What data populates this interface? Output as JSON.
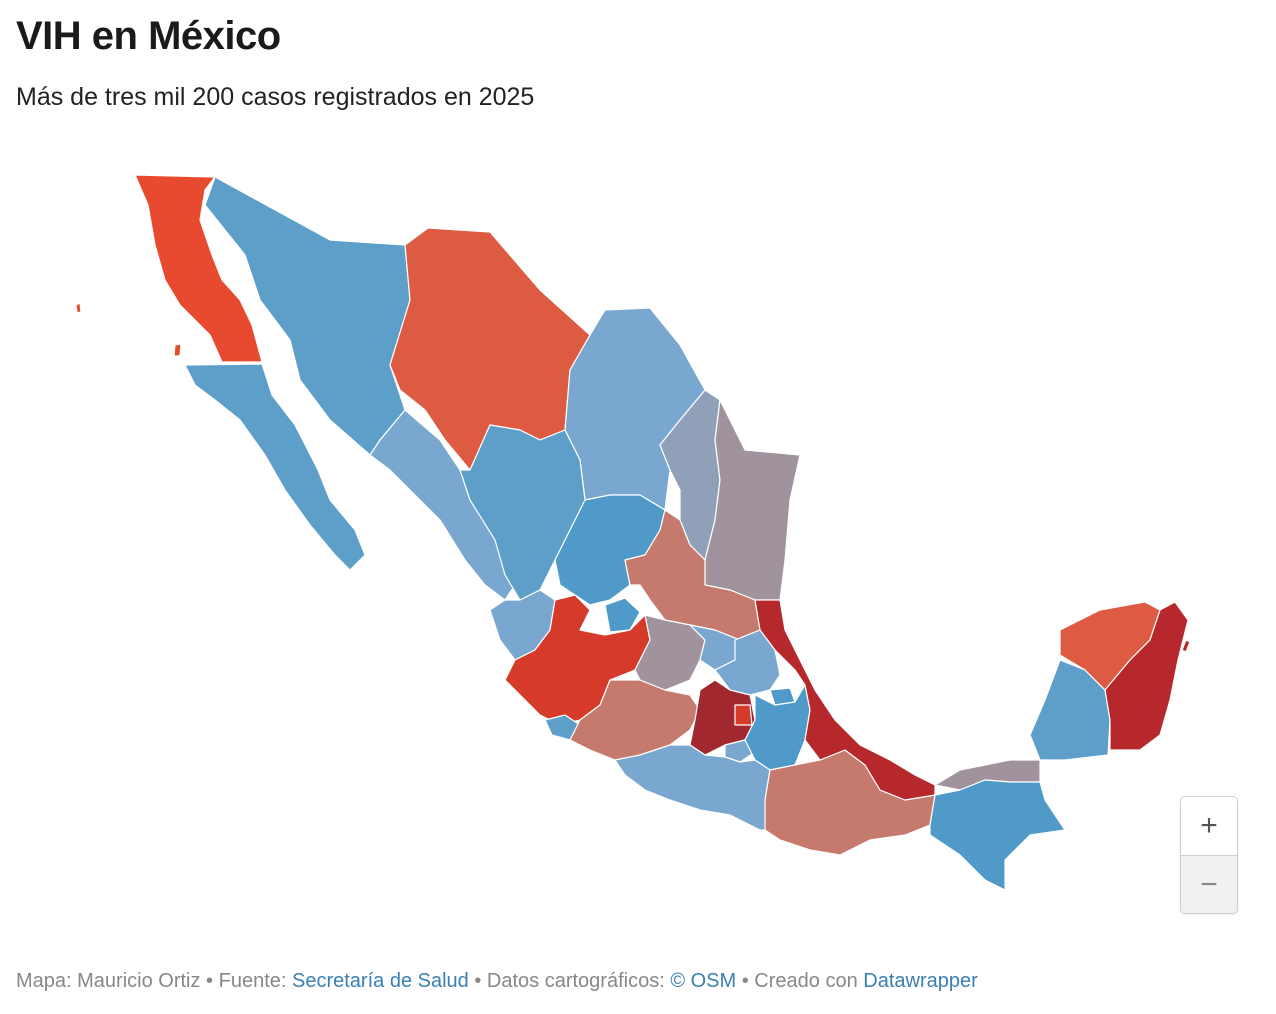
{
  "header": {
    "title": "VIH en México",
    "subtitle": "Más de tres mil 200 casos registrados en 2025"
  },
  "colors": {
    "blue": "#5e9fc9",
    "blue_light": "#7aa7cf",
    "blue_dark": "#4f9ac8",
    "grey_mauve": "#a0939e",
    "grey_blue": "#8fa0b8",
    "salmon": "#c67a6d",
    "orange_red": "#dc5b42",
    "red": "#d53a2b",
    "dark_red": "#b7282c",
    "maroon": "#a1282f",
    "bright_red": "#e84a2f"
  },
  "zoom": {
    "in_label": "+",
    "out_label": "−"
  },
  "footer": {
    "author_prefix": "Mapa: Mauricio Ortiz • Fuente: ",
    "source_link": "Secretaría de Salud",
    "maps_prefix": " • Datos cartográficos: ",
    "osm_link": "© OSM",
    "created_prefix": "  • Creado con ",
    "tool_link": "Datawrapper"
  }
}
